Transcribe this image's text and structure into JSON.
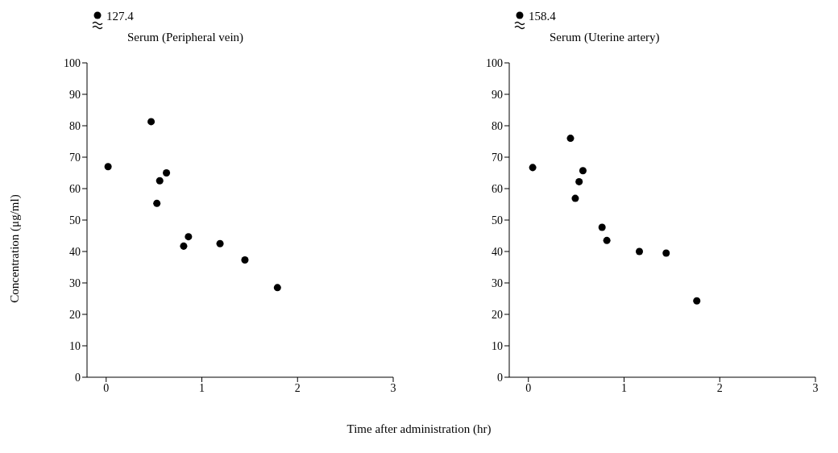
{
  "chart_data": [
    {
      "type": "scatter",
      "title": "Serum (Peripheral vein)",
      "xlabel": "Time after administration (hr)",
      "ylabel": "Concentration (μg/ml)",
      "annotations": [
        "127.4"
      ],
      "marker": "circle",
      "grid": false,
      "xlim": [
        -0.2,
        3
      ],
      "xticks": [
        0,
        1,
        2,
        3
      ],
      "ylim": [
        0,
        100
      ],
      "yticks": [
        0,
        10,
        20,
        30,
        40,
        50,
        60,
        70,
        80,
        90,
        100
      ],
      "series": [
        {
          "color": "#000000",
          "x": [
            0.02,
            0.47,
            0.53,
            0.56,
            0.63,
            0.81,
            0.86,
            1.19,
            1.45,
            1.79
          ],
          "values": [
            67,
            81.3,
            55.3,
            62.5,
            65,
            41.7,
            44.7,
            42.5,
            37.3,
            28.5
          ]
        }
      ]
    },
    {
      "type": "scatter",
      "title": "Serum (Uterine artery)",
      "annotations": [
        "158.4"
      ],
      "marker": "circle",
      "grid": false,
      "xlim": [
        -0.2,
        3
      ],
      "xticks": [
        0,
        1,
        2,
        3
      ],
      "ylim": [
        0,
        100
      ],
      "yticks": [
        0,
        10,
        20,
        30,
        40,
        50,
        60,
        70,
        80,
        90,
        100
      ],
      "series": [
        {
          "color": "#000000",
          "x": [
            0.045,
            0.44,
            0.49,
            0.53,
            0.57,
            0.77,
            0.82,
            1.16,
            1.44,
            1.76
          ],
          "values": [
            66.7,
            76,
            56.9,
            62.2,
            65.7,
            47.7,
            43.5,
            40,
            39.5,
            24.3
          ]
        }
      ]
    }
  ]
}
